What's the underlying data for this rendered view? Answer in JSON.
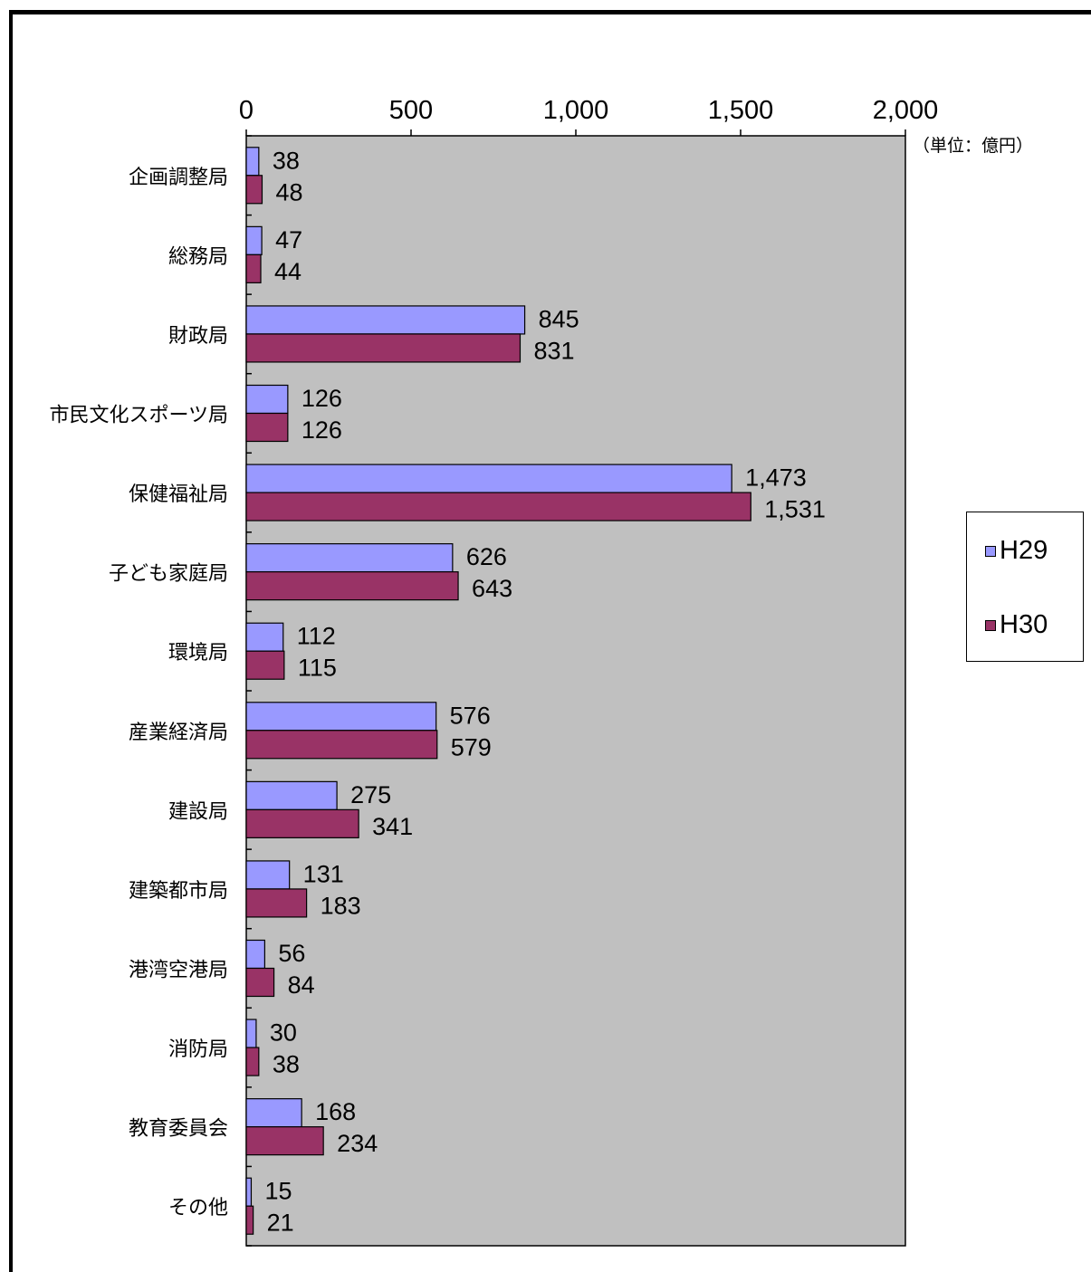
{
  "chart_data": {
    "type": "bar",
    "orientation": "horizontal",
    "unit_note": "（単位：億円）",
    "categories": [
      "企画調整局",
      "総務局",
      "財政局",
      "市民文化スポーツ局",
      "保健福祉局",
      "子ども家庭局",
      "環境局",
      "産業経済局",
      "建設局",
      "建築都市局",
      "港湾空港局",
      "消防局",
      "教育委員会",
      "その他"
    ],
    "series": [
      {
        "name": "H29",
        "color": "#9999ff",
        "values": [
          38,
          47,
          845,
          126,
          1473,
          626,
          112,
          576,
          275,
          131,
          56,
          30,
          168,
          15
        ]
      },
      {
        "name": "H30",
        "color": "#993366",
        "values": [
          48,
          44,
          831,
          126,
          1531,
          643,
          115,
          579,
          341,
          183,
          84,
          38,
          234,
          21
        ]
      }
    ],
    "value_labels": {
      "H29": [
        "38",
        "47",
        "845",
        "126",
        "1,473",
        "626",
        "112",
        "576",
        "275",
        "131",
        "56",
        "30",
        "168",
        "15"
      ],
      "H30": [
        "48",
        "44",
        "831",
        "126",
        "1,531",
        "643",
        "115",
        "579",
        "341",
        "183",
        "84",
        "38",
        "234",
        "21"
      ]
    },
    "xlim": [
      0,
      2000
    ],
    "xticks": [
      0,
      500,
      1000,
      1500,
      2000
    ],
    "xtick_labels": [
      "0",
      "500",
      "1,000",
      "1,500",
      "2,000"
    ],
    "plot_background": "#c0c0c0",
    "grid": false,
    "legend_position": "right"
  }
}
